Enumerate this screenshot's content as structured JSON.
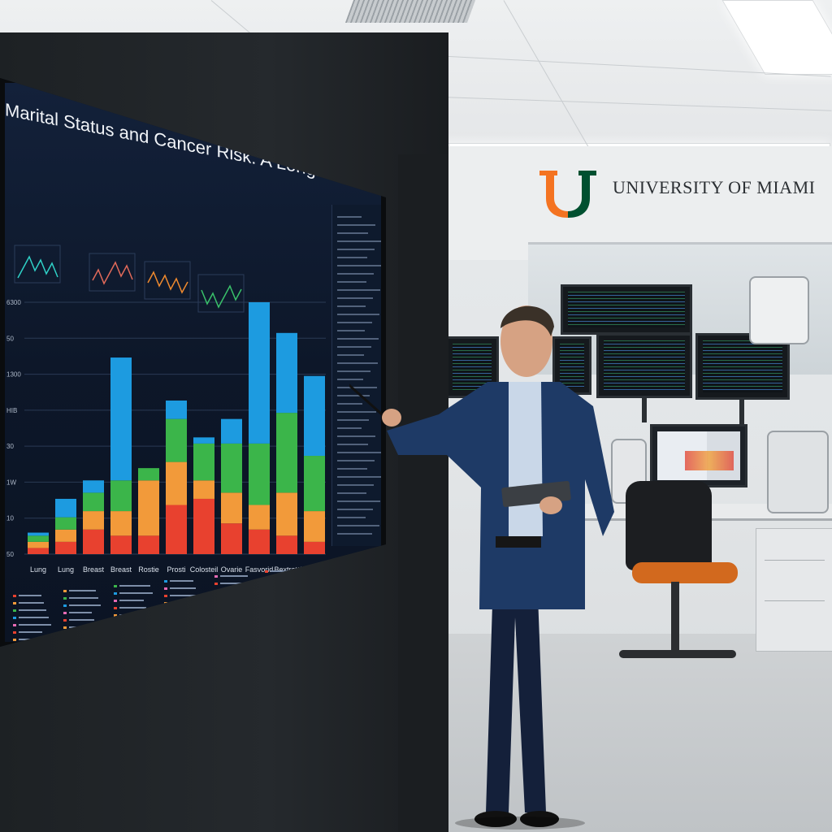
{
  "screen": {
    "title": "Marital Status and Cancer Risk: A Longitudinal Study",
    "chart_data": {
      "type": "bar",
      "stacked": true,
      "categories": [
        "Lung",
        "Lung",
        "Breast",
        "Breast",
        "Rostie",
        "Prosti",
        "Colosteil",
        "Ovarie",
        "Fasvorid",
        "Bextratt",
        "Reowver"
      ],
      "y_tick_labels": [
        "50",
        "10",
        "1W",
        "30",
        "HIB",
        "1300",
        "50",
        "6300"
      ],
      "series": [
        {
          "color": "#e8412f",
          "values": [
            1,
            2,
            4,
            3,
            3,
            8,
            9,
            5,
            4,
            3,
            2
          ]
        },
        {
          "color": "#f29a3a",
          "values": [
            1,
            2,
            3,
            4,
            9,
            7,
            3,
            5,
            4,
            7,
            5
          ]
        },
        {
          "color": "#3bb54a",
          "values": [
            1,
            2,
            3,
            5,
            2,
            7,
            6,
            8,
            10,
            13,
            9
          ]
        },
        {
          "color": "#1d9be0",
          "values": [
            0.5,
            3,
            2,
            20,
            0,
            3,
            1,
            4,
            23,
            13,
            13
          ]
        }
      ]
    }
  },
  "brand": {
    "name": "UNIVERSITY OF MIAMI",
    "logo_colors": {
      "left": "#f47321",
      "right": "#005030"
    }
  }
}
